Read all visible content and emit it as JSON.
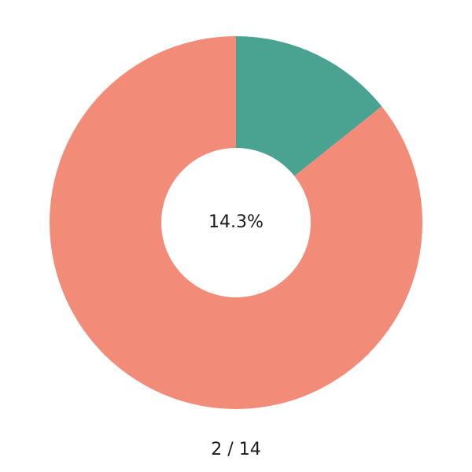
{
  "chart_data": {
    "type": "pie",
    "values": [
      2,
      12
    ],
    "colors": [
      "#4aa391",
      "#f28b78"
    ],
    "center_label": "14.3%",
    "caption": "2 / 14",
    "donut": true,
    "start_angle": 90,
    "direction": "clockwise"
  }
}
